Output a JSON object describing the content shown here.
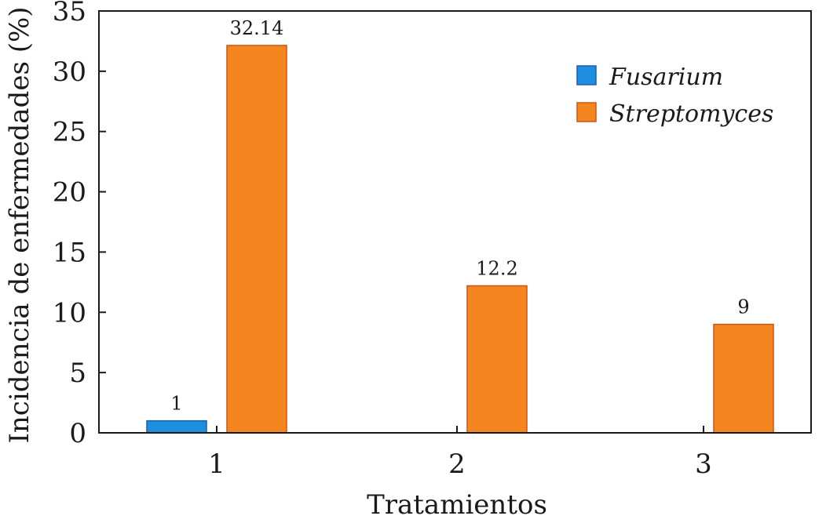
{
  "chart_data": {
    "type": "bar",
    "title": "",
    "xlabel": "Tratamientos",
    "ylabel": "Incidencia de enfermedades (%)",
    "categories": [
      "1",
      "2",
      "3"
    ],
    "ylim": [
      0,
      35
    ],
    "yticks": [
      0,
      5,
      10,
      15,
      20,
      25,
      30,
      35
    ],
    "grid": false,
    "legend_position": "top-right",
    "series": [
      {
        "name": "Fusarium",
        "color": "#1e8fe0",
        "edge_color": "#1f5fa8",
        "values": [
          1,
          null,
          null
        ],
        "labels": [
          "1",
          "",
          ""
        ]
      },
      {
        "name": "Streptomyces",
        "color": "#f5851f",
        "edge_color": "#c8561a",
        "values": [
          32.14,
          12.2,
          9
        ],
        "labels": [
          "32.14",
          "12.2",
          "9"
        ]
      }
    ]
  }
}
